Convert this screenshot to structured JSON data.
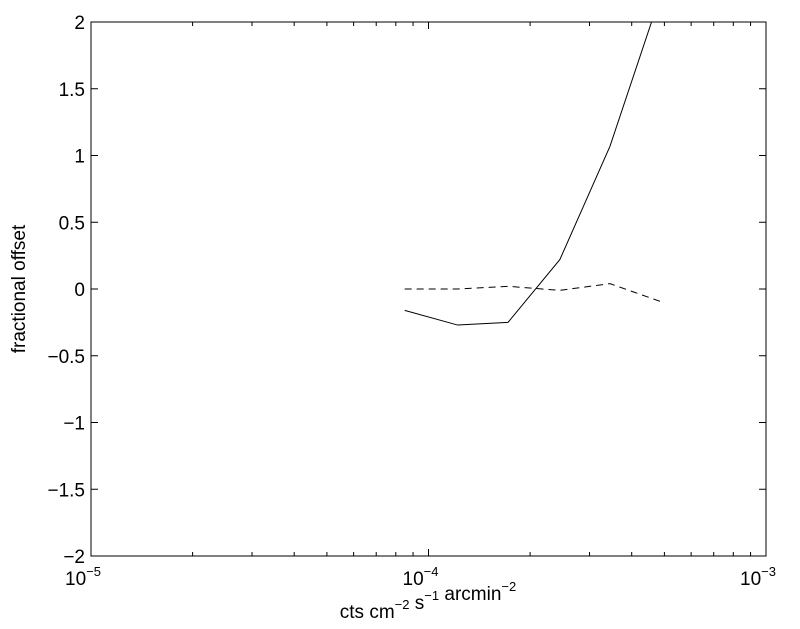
{
  "chart_data": {
    "type": "line",
    "title": "",
    "xlabel": {
      "parts": [
        {
          "text": "cts cm",
          "sup": "−2"
        },
        {
          "text": " s",
          "sup": "−1"
        },
        {
          "text": " arcmin",
          "sup": "−2"
        }
      ]
    },
    "ylabel": "fractional offset",
    "x_scale": "log",
    "xlim": [
      1e-05,
      0.001
    ],
    "ylim": [
      -2,
      2
    ],
    "x_ticks": [
      {
        "value": 1e-05,
        "base": "10",
        "exp": "−5"
      },
      {
        "value": 0.0001,
        "base": "10",
        "exp": "−4"
      },
      {
        "value": 0.001,
        "base": "10",
        "exp": "−3"
      }
    ],
    "y_ticks": [
      {
        "value": 2,
        "label": "2"
      },
      {
        "value": 1.5,
        "label": "1.5"
      },
      {
        "value": 1,
        "label": "1"
      },
      {
        "value": 0.5,
        "label": "0.5"
      },
      {
        "value": 0,
        "label": "0"
      },
      {
        "value": -0.5,
        "label": "−0.5"
      },
      {
        "value": -1,
        "label": "−1"
      },
      {
        "value": -1.5,
        "label": "−1.5"
      },
      {
        "value": -2,
        "label": "−2"
      }
    ],
    "grid": false,
    "series": [
      {
        "style": "solid",
        "color": "#000000",
        "x": [
          8.5e-05,
          0.000122,
          0.000172,
          0.000245,
          0.000345,
          0.000465
        ],
        "y": [
          -0.16,
          -0.27,
          -0.25,
          0.22,
          1.07,
          2.05
        ]
      },
      {
        "style": "dashed",
        "color": "#000000",
        "x": [
          8.5e-05,
          0.000122,
          0.000172,
          0.000245,
          0.000345,
          0.000495
        ],
        "y": [
          0.0,
          0.0,
          0.02,
          -0.01,
          0.04,
          -0.1
        ]
      }
    ]
  }
}
